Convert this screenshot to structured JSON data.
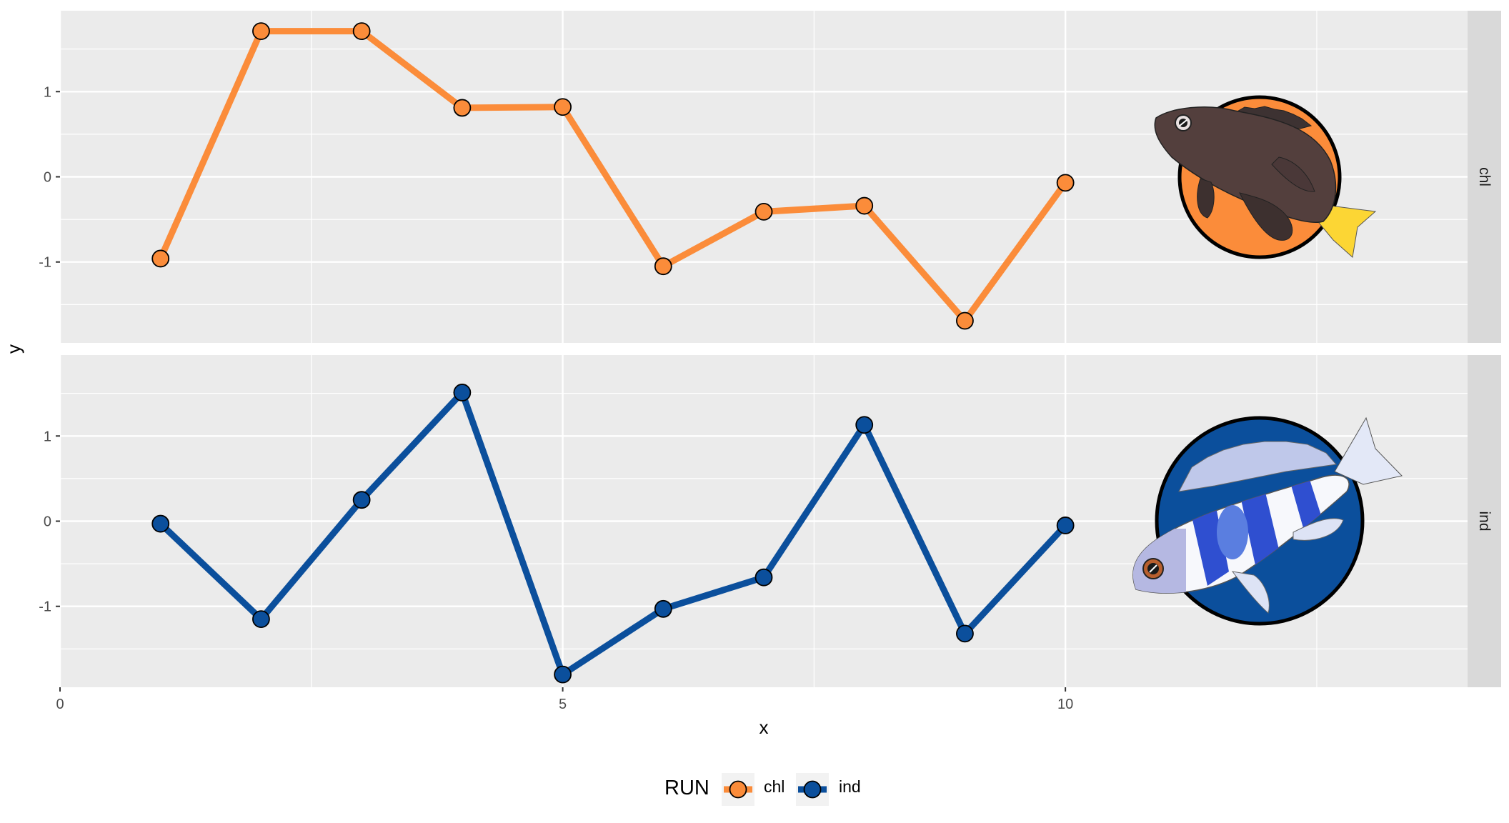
{
  "chart_data": {
    "type": "line",
    "facet_by": "RUN",
    "xlabel": "x",
    "ylabel": "y",
    "xlim": [
      0,
      14
    ],
    "x_ticks": [
      0,
      5,
      10
    ],
    "x_tick_labels": [
      "0",
      "5",
      "10"
    ],
    "y_ticks": [
      -1,
      0,
      1
    ],
    "y_tick_labels": [
      "-1",
      "0",
      "1"
    ],
    "grid": true,
    "legend": {
      "title": "RUN",
      "position": "bottom"
    },
    "x": [
      1,
      2,
      3,
      4,
      5,
      6,
      7,
      8,
      9,
      10
    ],
    "series": [
      {
        "name": "chl",
        "color": "#fb8c3a",
        "values": [
          -0.96,
          1.71,
          1.71,
          0.81,
          0.82,
          -1.05,
          -0.41,
          -0.34,
          -1.69,
          -0.07
        ],
        "ylim": [
          -1.95,
          1.95
        ],
        "image": "black-rockfish-icon"
      },
      {
        "name": "ind",
        "color": "#0b4f9c",
        "values": [
          -0.03,
          -1.15,
          0.25,
          1.51,
          -1.8,
          -1.03,
          -0.66,
          1.13,
          -1.32,
          -0.05
        ],
        "ylim": [
          -1.95,
          1.95
        ],
        "image": "striped-cichlid-icon"
      }
    ]
  }
}
